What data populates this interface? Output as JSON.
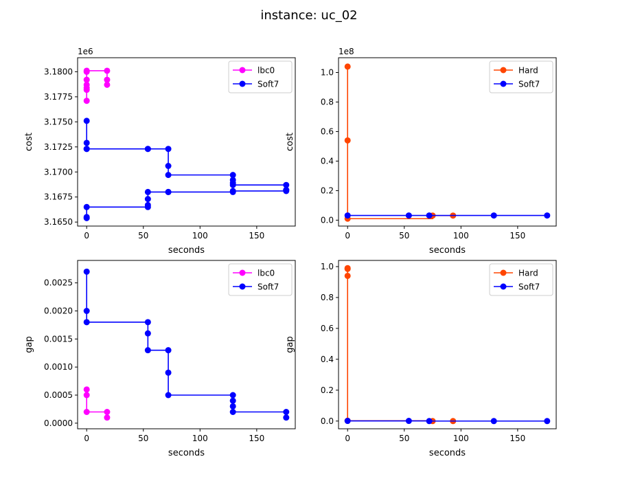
{
  "figure_title": "instance: uc_02",
  "colors": {
    "lbc0": "#ff00ff",
    "Soft7": "#0000ff",
    "Hard": "#ff4500",
    "axis": "#000000",
    "background": "#ffffff"
  },
  "chart_data": [
    {
      "type": "line",
      "position": "top-left",
      "xlabel": "seconds",
      "ylabel": "cost",
      "offset_text": "1e6",
      "scale": 1000000,
      "xlim": [
        -8,
        184
      ],
      "ylim": [
        3164600,
        3181400
      ],
      "xticks": [
        0,
        50,
        100,
        150
      ],
      "xtick_labels": [
        "0",
        "50",
        "100",
        "150"
      ],
      "yticks": [
        3165000,
        3167500,
        3170000,
        3172500,
        3175000,
        3177500,
        3180000
      ],
      "ytick_labels": [
        "3.1650",
        "3.1675",
        "3.1700",
        "3.1725",
        "3.1750",
        "3.1775",
        "3.1800"
      ],
      "legend": [
        "lbc0",
        "Soft7"
      ],
      "legend_loc": "upper right",
      "series": [
        {
          "name": "lbc0",
          "color": "#ff00ff",
          "step": true,
          "segments": [
            {
              "x": [
                0,
                0,
                0,
                0,
                0,
                0,
                0,
                18,
                18,
                18
              ],
              "y": [
                3177100,
                3178200,
                3178400,
                3178700,
                3179200,
                3180000,
                3180100,
                3180100,
                3179200,
                3178700
              ]
            }
          ]
        },
        {
          "name": "Soft7",
          "color": "#0000ff",
          "step": true,
          "segments": [
            {
              "x": [
                0,
                0,
                0,
                0,
                54,
                54,
                72,
                72,
                72,
                129,
                129,
                129,
                129,
                176,
                176
              ],
              "y": [
                3175100,
                3172900,
                3172300,
                3172300,
                3172300,
                3172300,
                3172300,
                3170600,
                3169700,
                3169700,
                3169200,
                3168900,
                3168700,
                3168700,
                3168200
              ]
            },
            {
              "x": [
                0,
                0,
                0,
                54,
                54,
                54,
                54,
                72,
                72,
                129,
                129,
                176,
                176
              ],
              "y": [
                3165400,
                3165500,
                3166500,
                3166500,
                3166700,
                3167300,
                3168000,
                3168000,
                3168000,
                3168000,
                3168100,
                3168100,
                3168200
              ]
            }
          ]
        }
      ]
    },
    {
      "type": "line",
      "position": "top-right",
      "xlabel": "seconds",
      "ylabel": "cost",
      "offset_text": "1e8",
      "scale": 100000000,
      "xlim": [
        -8,
        184
      ],
      "ylim": [
        -4000000,
        110000000
      ],
      "xticks": [
        0,
        50,
        100,
        150
      ],
      "xtick_labels": [
        "0",
        "50",
        "100",
        "150"
      ],
      "yticks": [
        0,
        20000000,
        40000000,
        60000000,
        80000000,
        100000000
      ],
      "ytick_labels": [
        "0.0",
        "0.2",
        "0.4",
        "0.6",
        "0.8",
        "1.0"
      ],
      "legend": [
        "Hard",
        "Soft7"
      ],
      "legend_loc": "upper right",
      "series": [
        {
          "name": "Hard",
          "color": "#ff4500",
          "step": true,
          "segments": [
            {
              "x": [
                0,
                0,
                0,
                75,
                93
              ],
              "y": [
                104000000,
                54000000,
                1000000,
                3100000,
                3100000
              ]
            }
          ]
        },
        {
          "name": "Soft7",
          "color": "#0000ff",
          "step": true,
          "segments": [
            {
              "x": [
                0,
                54,
                72,
                129,
                176
              ],
              "y": [
                3170000,
                3170000,
                3170000,
                3170000,
                3170000
              ]
            }
          ]
        }
      ]
    },
    {
      "type": "line",
      "position": "bottom-left",
      "xlabel": "seconds",
      "ylabel": "gap",
      "xlim": [
        -8,
        184
      ],
      "ylim": [
        -0.0001,
        0.0029
      ],
      "xticks": [
        0,
        50,
        100,
        150
      ],
      "xtick_labels": [
        "0",
        "50",
        "100",
        "150"
      ],
      "yticks": [
        0,
        0.0005,
        0.001,
        0.0015,
        0.002,
        0.0025
      ],
      "ytick_labels": [
        "0.0000",
        "0.0005",
        "0.0010",
        "0.0015",
        "0.0020",
        "0.0025"
      ],
      "legend": [
        "lbc0",
        "Soft7"
      ],
      "legend_loc": "upper right",
      "series": [
        {
          "name": "lbc0",
          "color": "#ff00ff",
          "step": true,
          "segments": [
            {
              "x": [
                0,
                0,
                0,
                18,
                18
              ],
              "y": [
                0.0006,
                0.0005,
                0.0002,
                0.0002,
                0.0001
              ]
            }
          ]
        },
        {
          "name": "Soft7",
          "color": "#0000ff",
          "step": true,
          "segments": [
            {
              "x": [
                0,
                0,
                0,
                54,
                54,
                54,
                72,
                72,
                72,
                129,
                129,
                129,
                129,
                176,
                176
              ],
              "y": [
                0.0027,
                0.002,
                0.0018,
                0.0018,
                0.0016,
                0.0013,
                0.0013,
                0.0009,
                0.0005,
                0.0005,
                0.0004,
                0.0003,
                0.0002,
                0.0002,
                0.0001
              ]
            }
          ]
        }
      ]
    },
    {
      "type": "line",
      "position": "bottom-right",
      "xlabel": "seconds",
      "ylabel": "gap",
      "xlim": [
        -8,
        184
      ],
      "ylim": [
        -0.05,
        1.04
      ],
      "xticks": [
        0,
        50,
        100,
        150
      ],
      "xtick_labels": [
        "0",
        "50",
        "100",
        "150"
      ],
      "yticks": [
        0,
        0.2,
        0.4,
        0.6,
        0.8,
        1.0
      ],
      "ytick_labels": [
        "0.0",
        "0.2",
        "0.4",
        "0.6",
        "0.8",
        "1.0"
      ],
      "legend": [
        "Hard",
        "Soft7"
      ],
      "legend_loc": "upper right",
      "series": [
        {
          "name": "Hard",
          "color": "#ff4500",
          "step": true,
          "segments": [
            {
              "x": [
                0,
                0,
                0,
                0,
                75,
                93
              ],
              "y": [
                0.99,
                0.985,
                0.94,
                0.002,
                0,
                0
              ]
            }
          ]
        },
        {
          "name": "Soft7",
          "color": "#0000ff",
          "step": true,
          "segments": [
            {
              "x": [
                0,
                54,
                72,
                129,
                176
              ],
              "y": [
                0.001,
                0.001,
                0,
                0,
                0
              ]
            }
          ]
        }
      ]
    }
  ]
}
